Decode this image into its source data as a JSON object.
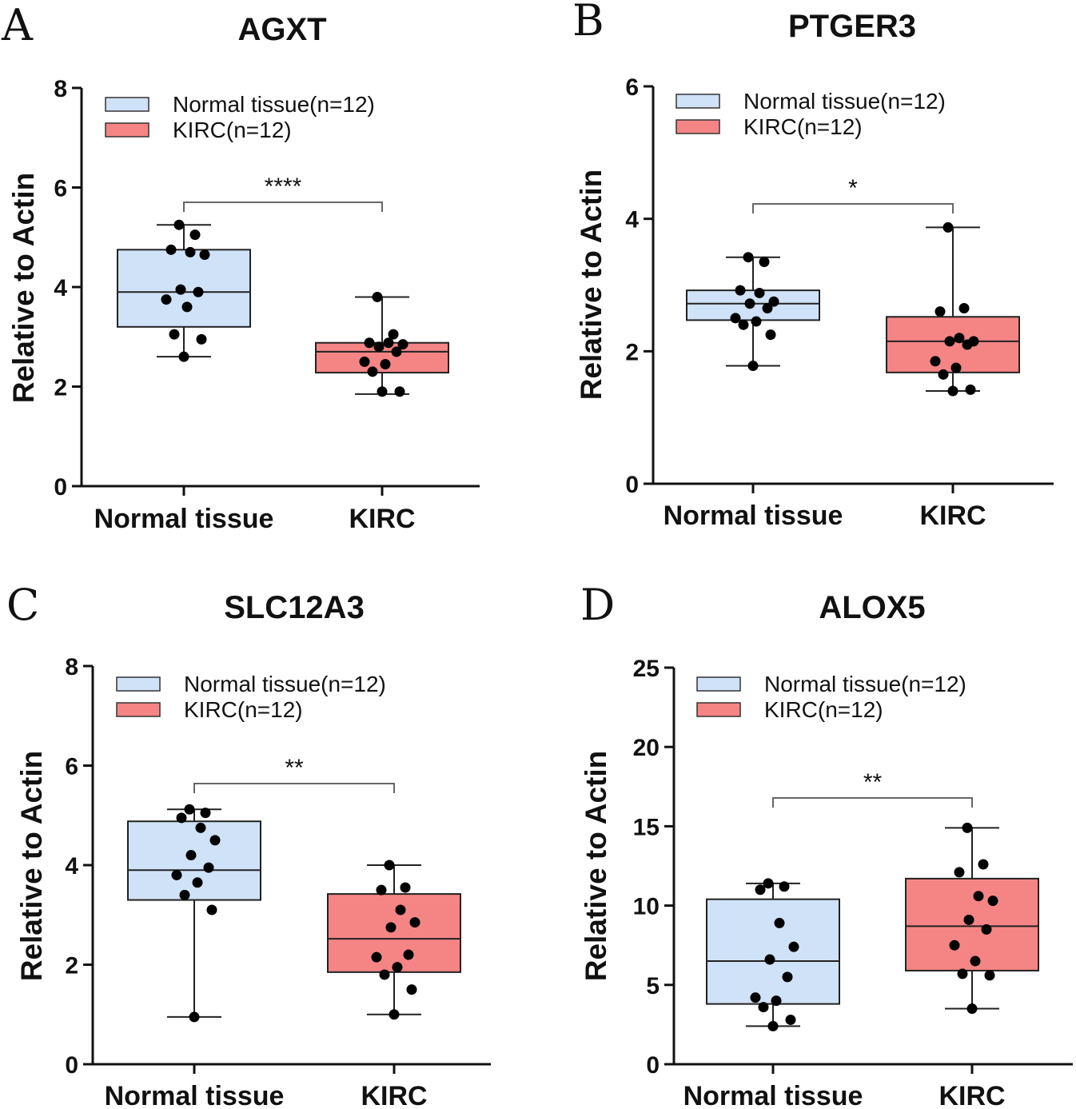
{
  "chart_data": [
    {
      "type": "box",
      "panel": "A",
      "title": "AGXT",
      "ylabel": "Relative to Actin",
      "xlabel": "",
      "ylim": [
        0,
        8
      ],
      "yticks": [
        0,
        2,
        4,
        6,
        8
      ],
      "categories": [
        "Normal tissue",
        "KIRC"
      ],
      "legend": [
        "Normal tissue(n=12)",
        "KIRC(n=12)"
      ],
      "significance": "****",
      "series": [
        {
          "name": "Normal tissue",
          "color": "#cfe2f8",
          "min": 2.6,
          "q1": 3.2,
          "median": 3.9,
          "q3": 4.75,
          "max": 5.25,
          "points": [
            5.25,
            5.05,
            4.75,
            4.7,
            4.65,
            3.95,
            3.9,
            3.75,
            3.6,
            3.05,
            2.95,
            2.6
          ]
        },
        {
          "name": "KIRC",
          "color": "#f58585",
          "min": 1.85,
          "q1": 2.28,
          "median": 2.7,
          "q3": 2.88,
          "max": 3.8,
          "points": [
            3.8,
            3.05,
            2.88,
            2.88,
            2.85,
            2.8,
            2.7,
            2.5,
            2.45,
            2.3,
            1.9,
            1.9
          ]
        }
      ]
    },
    {
      "type": "box",
      "panel": "B",
      "title": "PTGER3",
      "ylabel": "Relative to Actin",
      "xlabel": "",
      "ylim": [
        0,
        6
      ],
      "yticks": [
        0,
        2,
        4,
        6
      ],
      "categories": [
        "Normal tissue",
        "KIRC"
      ],
      "legend": [
        "Normal tissue(n=12)",
        "KIRC(n=12)"
      ],
      "significance": "*",
      "series": [
        {
          "name": "Normal tissue",
          "color": "#cfe2f8",
          "min": 1.78,
          "q1": 2.47,
          "median": 2.72,
          "q3": 2.92,
          "max": 3.42,
          "points": [
            3.42,
            3.35,
            2.92,
            2.88,
            2.75,
            2.72,
            2.65,
            2.5,
            2.45,
            2.4,
            2.25,
            1.78
          ]
        },
        {
          "name": "KIRC",
          "color": "#f58585",
          "min": 1.4,
          "q1": 1.68,
          "median": 2.15,
          "q3": 2.52,
          "max": 3.87,
          "points": [
            3.87,
            2.65,
            2.6,
            2.2,
            2.15,
            2.15,
            2.1,
            1.85,
            1.75,
            1.65,
            1.42,
            1.4
          ]
        }
      ]
    },
    {
      "type": "box",
      "panel": "C",
      "title": "SLC12A3",
      "ylabel": "Relative to Actin",
      "xlabel": "",
      "ylim": [
        0,
        8
      ],
      "yticks": [
        0,
        2,
        4,
        6,
        8
      ],
      "categories": [
        "Normal tissue",
        "KIRC"
      ],
      "legend": [
        "Normal tissue(n=12)",
        "KIRC(n=12)"
      ],
      "significance": "**",
      "series": [
        {
          "name": "Normal tissue",
          "color": "#cfe2f8",
          "min": 0.95,
          "q1": 3.3,
          "median": 3.9,
          "q3": 4.88,
          "max": 5.12,
          "points": [
            5.12,
            5.05,
            4.95,
            4.75,
            4.5,
            4.2,
            3.95,
            3.8,
            3.65,
            3.4,
            3.1,
            0.95
          ]
        },
        {
          "name": "KIRC",
          "color": "#f58585",
          "min": 1.0,
          "q1": 1.85,
          "median": 2.52,
          "q3": 3.42,
          "max": 4.0,
          "points": [
            4.0,
            3.55,
            3.5,
            3.1,
            2.85,
            2.75,
            2.2,
            2.15,
            1.95,
            1.8,
            1.5,
            1.0
          ]
        }
      ]
    },
    {
      "type": "box",
      "panel": "D",
      "title": "ALOX5",
      "ylabel": "Relative to Actin",
      "xlabel": "",
      "ylim": [
        0,
        25
      ],
      "yticks": [
        0,
        5,
        10,
        15,
        20,
        25
      ],
      "categories": [
        "Normal tissue",
        "KIRC"
      ],
      "legend": [
        "Normal tissue(n=12)",
        "KIRC(n=12)"
      ],
      "significance": "**",
      "series": [
        {
          "name": "Normal tissue",
          "color": "#cfe2f8",
          "min": 2.4,
          "q1": 3.8,
          "median": 6.5,
          "q3": 10.4,
          "max": 11.4,
          "points": [
            11.4,
            11.2,
            11.0,
            8.9,
            7.4,
            6.6,
            5.5,
            4.2,
            4.0,
            3.6,
            2.8,
            2.4
          ]
        },
        {
          "name": "KIRC",
          "color": "#f58585",
          "min": 3.5,
          "q1": 5.9,
          "median": 8.7,
          "q3": 11.7,
          "max": 14.9,
          "points": [
            14.9,
            12.6,
            12.1,
            10.6,
            10.3,
            9.1,
            8.5,
            7.5,
            6.5,
            5.7,
            5.6,
            3.5
          ]
        }
      ]
    }
  ]
}
